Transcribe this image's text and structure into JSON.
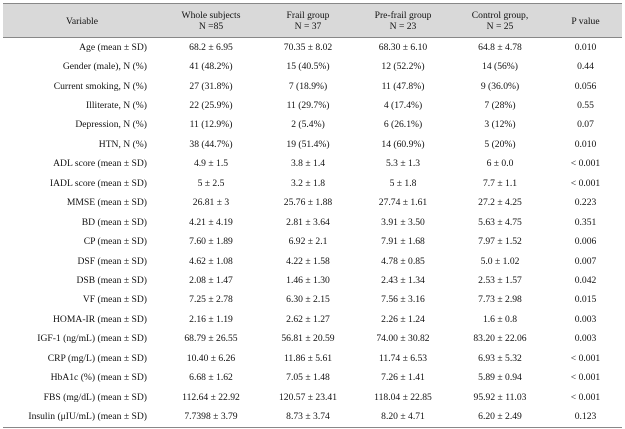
{
  "header": {
    "variable": "Variable",
    "whole": [
      "Whole subjects",
      "N =85"
    ],
    "frail": [
      "Frail group",
      "N = 37"
    ],
    "prefrail": [
      "Pre-frail group",
      "N = 23"
    ],
    "control": [
      "Control group,",
      "N = 25"
    ],
    "pvalue": "P value"
  },
  "rows": [
    {
      "v": "Age (mean ± SD)",
      "w": "68.2 ± 6.95",
      "f": "70.35 ± 8.02",
      "p": "68.30 ± 6.10",
      "c": "64.8 ± 4.78",
      "pv": "0.010"
    },
    {
      "v": "Gender (male), N (%)",
      "w": "41 (48.2%)",
      "f": "15 (40.5%)",
      "p": "12 (52.2%)",
      "c": "14 (56%)",
      "pv": "0.44"
    },
    {
      "v": "Current smoking, N (%)",
      "w": "27 (31.8%)",
      "f": "7 (18.9%)",
      "p": "11 (47.8%)",
      "c": "9 (36.0%)",
      "pv": "0.056"
    },
    {
      "v": "Illiterate, N (%)",
      "w": "22 (25.9%)",
      "f": "11 (29.7%)",
      "p": "4 (17.4%)",
      "c": "7 (28%)",
      "pv": "0.55"
    },
    {
      "v": "Depression, N (%)",
      "w": "11 (12.9%)",
      "f": "2 (5.4%)",
      "p": "6 (26.1%)",
      "c": "3 (12%)",
      "pv": "0.07"
    },
    {
      "v": "HTN, N (%)",
      "w": "38 (44.7%)",
      "f": "19 (51.4%)",
      "p": "14 (60.9%)",
      "c": "5 (20%)",
      "pv": "0.010"
    },
    {
      "v": "ADL score (mean ± SD)",
      "w": "4.9 ± 1.5",
      "f": "3.8 ± 1.4",
      "p": "5.3 ± 1.3",
      "c": "6 ± 0.0",
      "pv": "< 0.001"
    },
    {
      "v": "IADL score (mean ± SD)",
      "w": "5 ± 2.5",
      "f": "3.2 ± 1.8",
      "p": "5 ± 1.8",
      "c": "7.7 ± 1.1",
      "pv": "< 0.001"
    },
    {
      "v": "MMSE (mean ± SD)",
      "w": "26.81 ± 3",
      "f": "25.76 ± 1.88",
      "p": "27.74 ± 1.61",
      "c": "27.2 ± 4.25",
      "pv": "0.223"
    },
    {
      "v": "BD (mean ± SD)",
      "w": "4.21 ± 4.19",
      "f": "2.81 ± 3.64",
      "p": "3.91 ± 3.50",
      "c": "5.63 ± 4.75",
      "pv": "0.351"
    },
    {
      "v": "CP (mean ± SD)",
      "w": "7.60 ± 1.89",
      "f": "6.92 ± 2.1",
      "p": "7.91 ± 1.68",
      "c": "7.97 ± 1.52",
      "pv": "0.006"
    },
    {
      "v": "DSF (mean ± SD)",
      "w": "4.62 ± 1.08",
      "f": "4.22 ± 1.58",
      "p": "4.78 ± 0.85",
      "c": "5.0 ± 1.02",
      "pv": "0.007"
    },
    {
      "v": "DSB (mean ± SD)",
      "w": "2.08 ± 1.47",
      "f": "1.46 ± 1.30",
      "p": "2.43 ± 1.34",
      "c": "2.53 ± 1.57",
      "pv": "0.042"
    },
    {
      "v": "VF (mean ± SD)",
      "w": "7.25 ± 2.78",
      "f": "6.30 ± 2.15",
      "p": "7.56 ± 3.16",
      "c": "7.73 ± 2.98",
      "pv": "0.015"
    },
    {
      "v": "HOMA-IR (mean ± SD)",
      "w": "2.16 ± 1.19",
      "f": "2.62 ± 1.27",
      "p": "2.26 ± 1.24",
      "c": "1.6 ± 0.8",
      "pv": "0.003"
    },
    {
      "v": "IGF-1 (ng/mL) (mean ± SD)",
      "w": "68.79 ± 26.55",
      "f": "56.81 ± 20.59",
      "p": "74.00 ± 30.82",
      "c": "83.20 ± 22.06",
      "pv": "0.003"
    },
    {
      "v": "CRP (mg/L) (mean ± SD)",
      "w": "10.40 ± 6.26",
      "f": "11.86 ± 5.61",
      "p": "11.74 ± 6.53",
      "c": "6.93 ± 5.32",
      "pv": "< 0.001"
    },
    {
      "v": "HbA1c (%) (mean ± SD)",
      "w": "6.68 ± 1.62",
      "f": "7.05 ± 1.48",
      "p": "7.26 ± 1.41",
      "c": "5.89 ± 0.94",
      "pv": "< 0.001"
    },
    {
      "v": "FBS (mg/dL) (mean ± SD)",
      "w": "112.64 ± 22.92",
      "f": "120.57 ± 23.41",
      "p": "118.04 ± 22.85",
      "c": "95.92 ± 11.03",
      "pv": "< 0.001"
    },
    {
      "v": "Insulin (μIU/mL) (mean ± SD)",
      "w": "7.7398 ± 3.79",
      "f": "8.73 ± 3.74",
      "p": "8.20 ± 4.71",
      "c": "6.20 ± 2.49",
      "pv": "0.123"
    }
  ]
}
